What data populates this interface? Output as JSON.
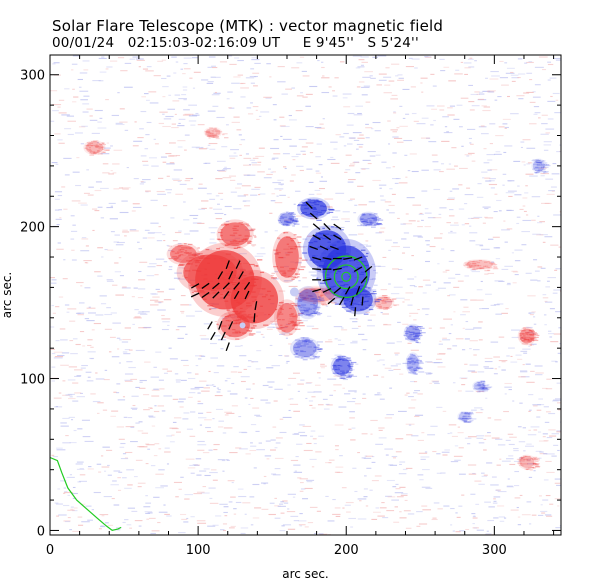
{
  "header": {
    "title": "Solar Flare Telescope (MTK) : vector magnetic field",
    "subtitle": "00/01/24   02:15:03-02:16:09 UT     E 9'45''   S 5'24''"
  },
  "colors": {
    "positive": "#ef3b3b",
    "negative": "#2a35e0",
    "contour": "#22cc22",
    "vectors": "#000000",
    "noise_pos": "#f3b8b8",
    "noise_neg": "#b9bdf0"
  },
  "chart_data": {
    "type": "heatmap",
    "title": "Solar Flare Telescope (MTK) : vector magnetic field",
    "xlabel": "arc sec.",
    "ylabel": "arc sec.",
    "xlim": [
      0,
      345
    ],
    "ylim": [
      -3,
      313
    ],
    "xticks": [
      0,
      100,
      200,
      300
    ],
    "yticks": [
      0,
      100,
      200,
      300
    ],
    "positive_regions": [
      {
        "x": 118,
        "y": 165,
        "rx": 20,
        "ry": 20,
        "strength": 1.0
      },
      {
        "x": 138,
        "y": 152,
        "rx": 16,
        "ry": 16,
        "strength": 1.0
      },
      {
        "x": 108,
        "y": 170,
        "rx": 18,
        "ry": 12,
        "strength": 0.9
      },
      {
        "x": 125,
        "y": 195,
        "rx": 10,
        "ry": 8,
        "strength": 0.8
      },
      {
        "x": 160,
        "y": 180,
        "rx": 8,
        "ry": 14,
        "strength": 0.8
      },
      {
        "x": 90,
        "y": 182,
        "rx": 9,
        "ry": 6,
        "strength": 0.7
      },
      {
        "x": 160,
        "y": 140,
        "rx": 7,
        "ry": 10,
        "strength": 0.7
      },
      {
        "x": 125,
        "y": 135,
        "rx": 10,
        "ry": 8,
        "strength": 0.8
      },
      {
        "x": 180,
        "y": 155,
        "rx": 12,
        "ry": 5,
        "strength": 0.5
      },
      {
        "x": 30,
        "y": 252,
        "rx": 6,
        "ry": 4,
        "strength": 0.4
      },
      {
        "x": 322,
        "y": 128,
        "rx": 5,
        "ry": 5,
        "strength": 0.6
      },
      {
        "x": 322,
        "y": 45,
        "rx": 5,
        "ry": 4,
        "strength": 0.4
      },
      {
        "x": 290,
        "y": 175,
        "rx": 9,
        "ry": 3,
        "strength": 0.35
      },
      {
        "x": 110,
        "y": 262,
        "rx": 5,
        "ry": 3,
        "strength": 0.3
      },
      {
        "x": 225,
        "y": 150,
        "rx": 6,
        "ry": 4,
        "strength": 0.35
      }
    ],
    "negative_regions": [
      {
        "x": 200,
        "y": 170,
        "rx": 16,
        "ry": 18,
        "strength": 1.0
      },
      {
        "x": 187,
        "y": 185,
        "rx": 13,
        "ry": 13,
        "strength": 1.0
      },
      {
        "x": 178,
        "y": 212,
        "rx": 9,
        "ry": 6,
        "strength": 0.9
      },
      {
        "x": 208,
        "y": 152,
        "rx": 10,
        "ry": 8,
        "strength": 0.9
      },
      {
        "x": 174,
        "y": 150,
        "rx": 7,
        "ry": 9,
        "strength": 0.5
      },
      {
        "x": 172,
        "y": 120,
        "rx": 8,
        "ry": 6,
        "strength": 0.5
      },
      {
        "x": 197,
        "y": 108,
        "rx": 6,
        "ry": 6,
        "strength": 0.7
      },
      {
        "x": 245,
        "y": 130,
        "rx": 5,
        "ry": 5,
        "strength": 0.5
      },
      {
        "x": 245,
        "y": 110,
        "rx": 4,
        "ry": 6,
        "strength": 0.4
      },
      {
        "x": 160,
        "y": 205,
        "rx": 5,
        "ry": 4,
        "strength": 0.5
      },
      {
        "x": 215,
        "y": 205,
        "rx": 6,
        "ry": 4,
        "strength": 0.5
      },
      {
        "x": 280,
        "y": 75,
        "rx": 4,
        "ry": 3,
        "strength": 0.3
      },
      {
        "x": 330,
        "y": 240,
        "rx": 4,
        "ry": 4,
        "strength": 0.3
      },
      {
        "x": 290,
        "y": 95,
        "rx": 4,
        "ry": 3,
        "strength": 0.3
      }
    ],
    "pores": [
      {
        "x": 165,
        "y": 157,
        "r": 3
      },
      {
        "x": 130,
        "y": 135,
        "r": 2
      }
    ],
    "contours": [
      {
        "x": 200,
        "y": 167,
        "r": 3
      },
      {
        "x": 200,
        "y": 167,
        "r": 8
      },
      {
        "x": 200,
        "y": 167,
        "r": 14
      }
    ],
    "limb_curve": [
      [
        0,
        48
      ],
      [
        5,
        46
      ],
      [
        8,
        38
      ],
      [
        12,
        28
      ],
      [
        18,
        20
      ],
      [
        25,
        14
      ],
      [
        32,
        8
      ],
      [
        38,
        3
      ],
      [
        42,
        0
      ],
      [
        46,
        1
      ],
      [
        48,
        2
      ]
    ],
    "vectors": [
      {
        "x": 98,
        "y": 161,
        "angle": 30,
        "len": 6
      },
      {
        "x": 105,
        "y": 161,
        "angle": 35,
        "len": 6
      },
      {
        "x": 112,
        "y": 161,
        "angle": 40,
        "len": 6
      },
      {
        "x": 119,
        "y": 161,
        "angle": 45,
        "len": 6
      },
      {
        "x": 126,
        "y": 161,
        "angle": 50,
        "len": 6
      },
      {
        "x": 133,
        "y": 161,
        "angle": 55,
        "len": 6
      },
      {
        "x": 98,
        "y": 155,
        "angle": 25,
        "len": 6
      },
      {
        "x": 105,
        "y": 155,
        "angle": 35,
        "len": 6
      },
      {
        "x": 112,
        "y": 155,
        "angle": 45,
        "len": 6
      },
      {
        "x": 119,
        "y": 155,
        "angle": 55,
        "len": 6
      },
      {
        "x": 126,
        "y": 155,
        "angle": 60,
        "len": 6
      },
      {
        "x": 133,
        "y": 155,
        "angle": 65,
        "len": 6
      },
      {
        "x": 115,
        "y": 168,
        "angle": 60,
        "len": 6
      },
      {
        "x": 122,
        "y": 168,
        "angle": 65,
        "len": 6
      },
      {
        "x": 129,
        "y": 168,
        "angle": 60,
        "len": 6
      },
      {
        "x": 120,
        "y": 175,
        "angle": 70,
        "len": 6
      },
      {
        "x": 127,
        "y": 175,
        "angle": 65,
        "len": 6
      },
      {
        "x": 108,
        "y": 135,
        "angle": 60,
        "len": 6
      },
      {
        "x": 115,
        "y": 135,
        "angle": 70,
        "len": 6
      },
      {
        "x": 122,
        "y": 135,
        "angle": 65,
        "len": 6
      },
      {
        "x": 110,
        "y": 128,
        "angle": 60,
        "len": 6
      },
      {
        "x": 117,
        "y": 128,
        "angle": 65,
        "len": 6
      },
      {
        "x": 120,
        "y": 121,
        "angle": 70,
        "len": 6
      },
      {
        "x": 139,
        "y": 148,
        "angle": 80,
        "len": 6
      },
      {
        "x": 138,
        "y": 140,
        "angle": 85,
        "len": 6
      },
      {
        "x": 180,
        "y": 200,
        "angle": -40,
        "len": 6
      },
      {
        "x": 187,
        "y": 200,
        "angle": -45,
        "len": 6
      },
      {
        "x": 194,
        "y": 200,
        "angle": -35,
        "len": 6
      },
      {
        "x": 180,
        "y": 193,
        "angle": -30,
        "len": 6
      },
      {
        "x": 187,
        "y": 193,
        "angle": -35,
        "len": 6
      },
      {
        "x": 194,
        "y": 193,
        "angle": -30,
        "len": 6
      },
      {
        "x": 178,
        "y": 186,
        "angle": -20,
        "len": 6
      },
      {
        "x": 185,
        "y": 186,
        "angle": -25,
        "len": 6
      },
      {
        "x": 192,
        "y": 186,
        "angle": -20,
        "len": 6
      },
      {
        "x": 180,
        "y": 179,
        "angle": -15,
        "len": 6
      },
      {
        "x": 187,
        "y": 179,
        "angle": -10,
        "len": 6
      },
      {
        "x": 194,
        "y": 179,
        "angle": 0,
        "len": 6
      },
      {
        "x": 201,
        "y": 179,
        "angle": 10,
        "len": 6
      },
      {
        "x": 208,
        "y": 179,
        "angle": 20,
        "len": 6
      },
      {
        "x": 180,
        "y": 172,
        "angle": -5,
        "len": 6
      },
      {
        "x": 187,
        "y": 172,
        "angle": 0,
        "len": 6
      },
      {
        "x": 194,
        "y": 172,
        "angle": 10,
        "len": 6
      },
      {
        "x": 208,
        "y": 172,
        "angle": 30,
        "len": 6
      },
      {
        "x": 215,
        "y": 172,
        "angle": 40,
        "len": 6
      },
      {
        "x": 180,
        "y": 165,
        "angle": 0,
        "len": 6
      },
      {
        "x": 187,
        "y": 165,
        "angle": 10,
        "len": 6
      },
      {
        "x": 212,
        "y": 165,
        "angle": 50,
        "len": 6
      },
      {
        "x": 180,
        "y": 158,
        "angle": 15,
        "len": 6
      },
      {
        "x": 187,
        "y": 158,
        "angle": 25,
        "len": 6
      },
      {
        "x": 194,
        "y": 158,
        "angle": 40,
        "len": 6
      },
      {
        "x": 201,
        "y": 158,
        "angle": 60,
        "len": 6
      },
      {
        "x": 208,
        "y": 158,
        "angle": 70,
        "len": 6
      },
      {
        "x": 190,
        "y": 151,
        "angle": 40,
        "len": 6
      },
      {
        "x": 197,
        "y": 151,
        "angle": 60,
        "len": 6
      },
      {
        "x": 204,
        "y": 151,
        "angle": 75,
        "len": 6
      },
      {
        "x": 211,
        "y": 151,
        "angle": 85,
        "len": 6
      },
      {
        "x": 206,
        "y": 144,
        "angle": 85,
        "len": 6
      },
      {
        "x": 178,
        "y": 207,
        "angle": -40,
        "len": 6
      },
      {
        "x": 175,
        "y": 214,
        "angle": -45,
        "len": 6
      }
    ]
  }
}
